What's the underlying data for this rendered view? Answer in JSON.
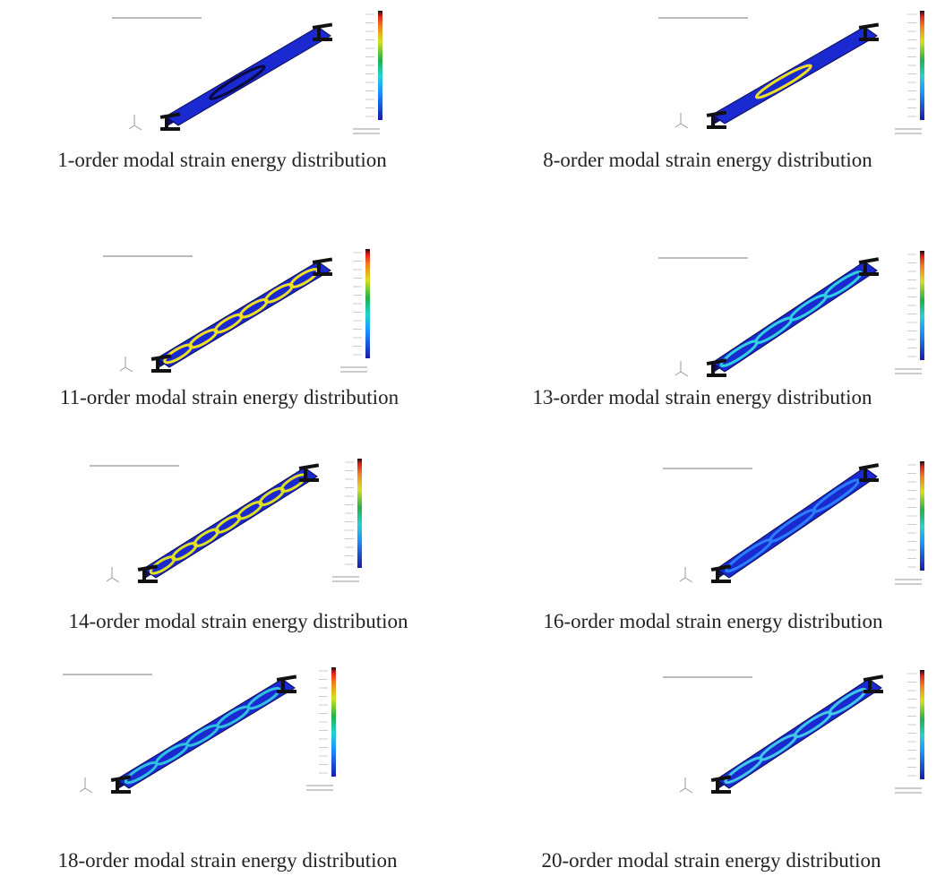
{
  "panels": [
    {
      "caption": "1-order modal strain energy distribution"
    },
    {
      "caption": "8-order modal strain energy distribution"
    },
    {
      "caption": "11-order modal strain energy distribution"
    },
    {
      "caption": "13-order modal strain energy distribution"
    },
    {
      "caption": "14-order modal strain energy distribution"
    },
    {
      "caption": "16-order modal strain energy distribution"
    },
    {
      "caption": "18-order modal strain energy distribution"
    },
    {
      "caption": "20-order modal strain energy distribution"
    }
  ]
}
